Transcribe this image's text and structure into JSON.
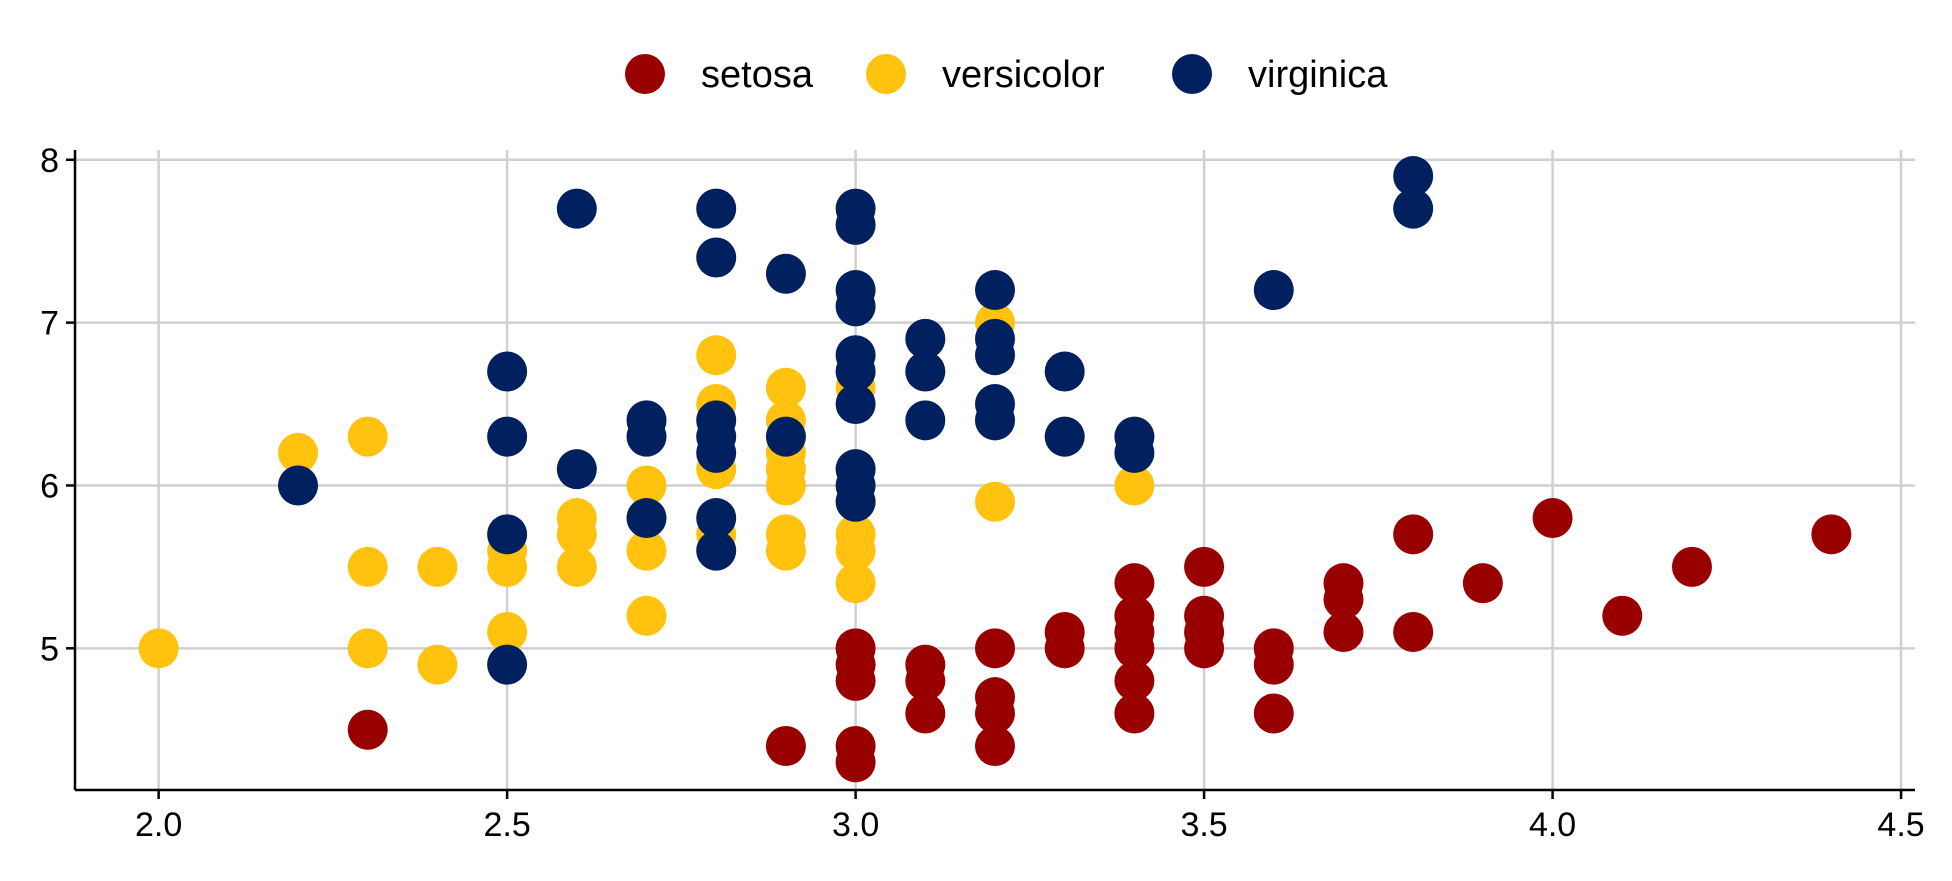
{
  "chart_data": {
    "type": "scatter",
    "title": "",
    "xlabel": "",
    "ylabel": "",
    "xlim": [
      1.88,
      4.52
    ],
    "ylim": [
      4.13,
      8.06
    ],
    "x_ticks": [
      2.0,
      2.5,
      3.0,
      3.5,
      4.0,
      4.5
    ],
    "x_tick_labels": [
      "2.0",
      "2.5",
      "3.0",
      "3.5",
      "4.0",
      "4.5"
    ],
    "y_ticks": [
      5,
      6,
      7,
      8
    ],
    "y_tick_labels": [
      "5",
      "6",
      "7",
      "8"
    ],
    "grid": true,
    "legend_position": "top",
    "series": [
      {
        "name": "setosa",
        "color": "#990000",
        "points": [
          [
            2.3,
            4.5
          ],
          [
            2.9,
            4.4
          ],
          [
            3.0,
            4.3
          ],
          [
            3.0,
            4.4
          ],
          [
            3.0,
            4.8
          ],
          [
            3.0,
            4.9
          ],
          [
            3.0,
            5.0
          ],
          [
            3.1,
            4.6
          ],
          [
            3.1,
            4.8
          ],
          [
            3.1,
            4.9
          ],
          [
            3.2,
            4.4
          ],
          [
            3.2,
            4.6
          ],
          [
            3.2,
            4.7
          ],
          [
            3.2,
            5.0
          ],
          [
            3.3,
            5.0
          ],
          [
            3.3,
            5.1
          ],
          [
            3.4,
            4.6
          ],
          [
            3.4,
            4.8
          ],
          [
            3.4,
            5.0
          ],
          [
            3.4,
            5.1
          ],
          [
            3.4,
            5.2
          ],
          [
            3.4,
            5.4
          ],
          [
            3.5,
            5.0
          ],
          [
            3.5,
            5.1
          ],
          [
            3.5,
            5.2
          ],
          [
            3.5,
            5.5
          ],
          [
            3.6,
            4.6
          ],
          [
            3.6,
            4.9
          ],
          [
            3.6,
            5.0
          ],
          [
            3.7,
            5.1
          ],
          [
            3.7,
            5.3
          ],
          [
            3.7,
            5.4
          ],
          [
            3.8,
            5.1
          ],
          [
            3.8,
            5.7
          ],
          [
            3.9,
            5.4
          ],
          [
            4.0,
            5.8
          ],
          [
            4.1,
            5.2
          ],
          [
            4.2,
            5.5
          ],
          [
            4.4,
            5.7
          ]
        ]
      },
      {
        "name": "versicolor",
        "color": "#FFC20E",
        "points": [
          [
            2.0,
            5.0
          ],
          [
            2.2,
            6.2
          ],
          [
            2.3,
            5.0
          ],
          [
            2.3,
            5.5
          ],
          [
            2.3,
            6.3
          ],
          [
            2.4,
            4.9
          ],
          [
            2.4,
            5.5
          ],
          [
            2.5,
            5.1
          ],
          [
            2.5,
            5.5
          ],
          [
            2.5,
            5.6
          ],
          [
            2.6,
            5.5
          ],
          [
            2.6,
            5.7
          ],
          [
            2.6,
            5.8
          ],
          [
            2.7,
            5.2
          ],
          [
            2.7,
            5.6
          ],
          [
            2.7,
            5.8
          ],
          [
            2.7,
            6.0
          ],
          [
            2.8,
            5.7
          ],
          [
            2.8,
            6.1
          ],
          [
            2.8,
            6.5
          ],
          [
            2.8,
            6.8
          ],
          [
            2.9,
            5.6
          ],
          [
            2.9,
            5.7
          ],
          [
            2.9,
            6.0
          ],
          [
            2.9,
            6.1
          ],
          [
            2.9,
            6.2
          ],
          [
            2.9,
            6.4
          ],
          [
            2.9,
            6.6
          ],
          [
            3.0,
            5.4
          ],
          [
            3.0,
            5.6
          ],
          [
            3.0,
            5.7
          ],
          [
            3.0,
            5.9
          ],
          [
            3.0,
            6.1
          ],
          [
            3.0,
            6.6
          ],
          [
            3.0,
            6.7
          ],
          [
            3.1,
            6.7
          ],
          [
            3.1,
            6.9
          ],
          [
            3.2,
            5.9
          ],
          [
            3.2,
            6.4
          ],
          [
            3.2,
            7.0
          ],
          [
            3.3,
            6.3
          ],
          [
            3.4,
            6.0
          ],
          [
            3.4,
            6.3
          ]
        ]
      },
      {
        "name": "virginica",
        "color": "#002060",
        "points": [
          [
            2.2,
            6.0
          ],
          [
            2.5,
            4.9
          ],
          [
            2.5,
            5.7
          ],
          [
            2.5,
            6.3
          ],
          [
            2.5,
            6.7
          ],
          [
            2.6,
            6.1
          ],
          [
            2.6,
            7.7
          ],
          [
            2.7,
            5.8
          ],
          [
            2.7,
            6.3
          ],
          [
            2.7,
            6.4
          ],
          [
            2.8,
            5.6
          ],
          [
            2.8,
            5.8
          ],
          [
            2.8,
            6.2
          ],
          [
            2.8,
            6.3
          ],
          [
            2.8,
            6.4
          ],
          [
            2.8,
            7.4
          ],
          [
            2.8,
            7.7
          ],
          [
            2.9,
            6.3
          ],
          [
            2.9,
            7.3
          ],
          [
            3.0,
            5.9
          ],
          [
            3.0,
            6.0
          ],
          [
            3.0,
            6.1
          ],
          [
            3.0,
            6.5
          ],
          [
            3.0,
            6.7
          ],
          [
            3.0,
            6.8
          ],
          [
            3.0,
            7.1
          ],
          [
            3.0,
            7.2
          ],
          [
            3.0,
            7.6
          ],
          [
            3.0,
            7.7
          ],
          [
            3.1,
            6.4
          ],
          [
            3.1,
            6.7
          ],
          [
            3.1,
            6.9
          ],
          [
            3.2,
            6.4
          ],
          [
            3.2,
            6.5
          ],
          [
            3.2,
            6.8
          ],
          [
            3.2,
            6.9
          ],
          [
            3.2,
            7.2
          ],
          [
            3.3,
            6.3
          ],
          [
            3.3,
            6.7
          ],
          [
            3.4,
            6.2
          ],
          [
            3.4,
            6.3
          ],
          [
            3.6,
            7.2
          ],
          [
            3.8,
            7.7
          ],
          [
            3.8,
            7.9
          ]
        ]
      }
    ]
  }
}
